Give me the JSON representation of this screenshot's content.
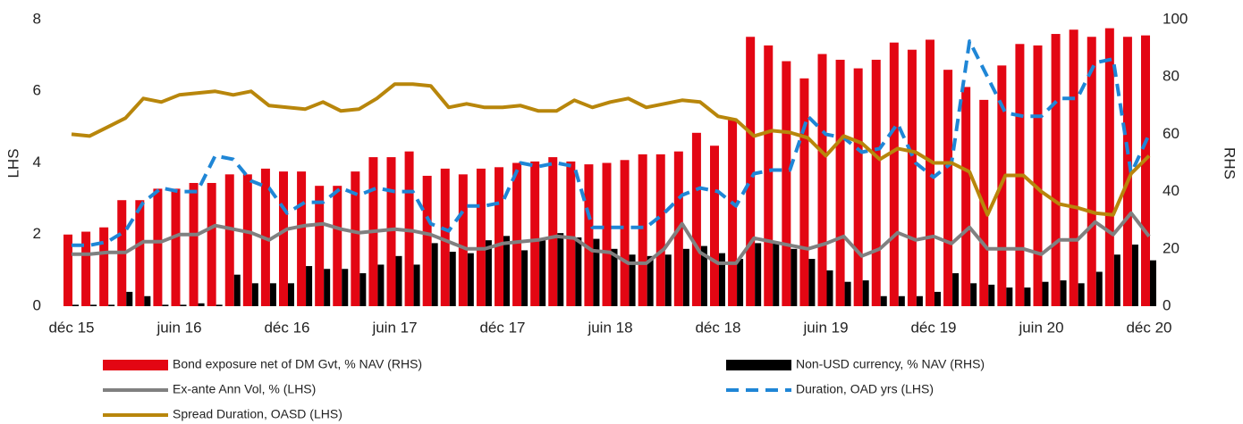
{
  "chart_data": {
    "type": "combo",
    "ylabel": "LHS",
    "y2label": "RHS",
    "categories": [
      "déc 15",
      null,
      null,
      null,
      null,
      null,
      "juin 16",
      null,
      null,
      null,
      null,
      null,
      "déc 16",
      null,
      null,
      null,
      null,
      null,
      "juin 17",
      null,
      null,
      null,
      null,
      null,
      "déc 17",
      null,
      null,
      null,
      null,
      null,
      "juin 18",
      null,
      null,
      null,
      null,
      null,
      "déc 18",
      null,
      null,
      null,
      null,
      null,
      "juin 19",
      null,
      null,
      null,
      null,
      null,
      "déc 19",
      null,
      null,
      null,
      null,
      null,
      "juin 20",
      null,
      null,
      null,
      null,
      null,
      "déc 20"
    ],
    "ylim": [
      0,
      8
    ],
    "yticks": [
      0,
      2,
      4,
      6,
      8
    ],
    "y2lim": [
      0,
      100
    ],
    "y2ticks": [
      0,
      20,
      40,
      60,
      80,
      100
    ],
    "series": [
      {
        "name": "Bond exposure net of DM Gvt, % NAV (RHS)",
        "kind": "bar",
        "axis": "y2",
        "color": "#e30613",
        "values": [
          25,
          26,
          27.5,
          37,
          37,
          41,
          41,
          43,
          43,
          46,
          46,
          48,
          47,
          47,
          42,
          42,
          47,
          52,
          52,
          54,
          45.5,
          48,
          46,
          48,
          48.5,
          50,
          50.5,
          52,
          50.5,
          49.5,
          50,
          51,
          53,
          53,
          54,
          60.5,
          56,
          65.5,
          94,
          91,
          85.5,
          79.5,
          88,
          86,
          83,
          86,
          92,
          89.5,
          93,
          82.5,
          76.5,
          72,
          84,
          91.5,
          91,
          95,
          96.5,
          94,
          97,
          94,
          94.5
        ]
      },
      {
        "name": "Non-USD currency, % NAV (RHS)",
        "kind": "bar",
        "axis": "y2",
        "color": "#000000",
        "values": [
          0.5,
          0.5,
          0.5,
          5,
          3.5,
          0.5,
          0.5,
          1,
          0.5,
          11,
          8,
          8,
          8,
          14,
          13,
          13,
          11.5,
          14.5,
          17.5,
          14.5,
          22,
          19,
          18.5,
          23,
          24.5,
          19.5,
          23,
          25.5,
          24,
          23.5,
          20,
          18,
          17.5,
          18,
          20,
          21,
          18.5,
          16.5,
          22,
          22,
          20,
          16.5,
          12.5,
          8.5,
          9,
          3.5,
          3.5,
          3.5,
          5,
          11.5,
          8,
          7.5,
          6.5,
          6.5,
          8.5,
          9,
          8,
          12,
          18,
          21.5,
          16
        ]
      },
      {
        "name": "Ex-ante Ann Vol, % (LHS)",
        "kind": "line",
        "color": "#808080",
        "linestyle": "solid",
        "values": [
          1.45,
          1.45,
          1.5,
          1.5,
          1.8,
          1.8,
          2.0,
          2.0,
          2.25,
          2.15,
          2.05,
          1.85,
          2.15,
          2.25,
          2.3,
          2.15,
          2.05,
          2.1,
          2.15,
          2.1,
          2.0,
          1.8,
          1.6,
          1.6,
          1.75,
          1.8,
          1.85,
          1.95,
          1.9,
          1.55,
          1.5,
          1.2,
          1.2,
          1.6,
          2.3,
          1.5,
          1.2,
          1.2,
          1.9,
          1.8,
          1.7,
          1.6,
          1.75,
          1.95,
          1.4,
          1.6,
          2.05,
          1.85,
          1.95,
          1.75,
          2.2,
          1.6,
          1.6,
          1.6,
          1.45,
          1.85,
          1.85,
          2.35,
          2.0,
          2.6,
          1.95
        ]
      },
      {
        "name": "Duration, OAD yrs (LHS)",
        "kind": "line",
        "color": "#1f86d6",
        "linestyle": "dashed",
        "values": [
          1.7,
          1.7,
          1.8,
          2.1,
          2.9,
          3.3,
          3.2,
          3.2,
          4.2,
          4.1,
          3.5,
          3.3,
          2.6,
          2.9,
          2.9,
          3.3,
          3.1,
          3.3,
          3.2,
          3.2,
          2.3,
          2.1,
          2.8,
          2.8,
          2.9,
          4.0,
          3.9,
          4.0,
          3.9,
          2.2,
          2.2,
          2.2,
          2.2,
          2.6,
          3.1,
          3.3,
          3.2,
          2.8,
          3.7,
          3.8,
          3.8,
          5.3,
          4.8,
          4.7,
          4.3,
          4.4,
          5.1,
          4.0,
          3.6,
          4.0,
          7.4,
          6.4,
          5.4,
          5.3,
          5.3,
          5.8,
          5.8,
          6.8,
          6.9,
          3.7,
          4.8
        ]
      },
      {
        "name": "Spread Duration, OASD (LHS)",
        "kind": "line",
        "color": "#b8860b",
        "linestyle": "solid",
        "values": [
          4.8,
          4.75,
          5.0,
          5.25,
          5.8,
          5.7,
          5.9,
          5.95,
          6.0,
          5.9,
          6.0,
          5.6,
          5.55,
          5.5,
          5.7,
          5.45,
          5.5,
          5.8,
          6.2,
          6.2,
          6.15,
          5.55,
          5.65,
          5.55,
          5.55,
          5.6,
          5.45,
          5.45,
          5.75,
          5.55,
          5.7,
          5.8,
          5.55,
          5.65,
          5.75,
          5.7,
          5.3,
          5.2,
          4.75,
          4.9,
          4.85,
          4.7,
          4.2,
          4.75,
          4.55,
          4.1,
          4.4,
          4.3,
          4.0,
          4.0,
          3.75,
          2.55,
          3.65,
          3.65,
          3.2,
          2.85,
          2.75,
          2.6,
          2.55,
          3.7,
          4.2
        ]
      }
    ]
  }
}
